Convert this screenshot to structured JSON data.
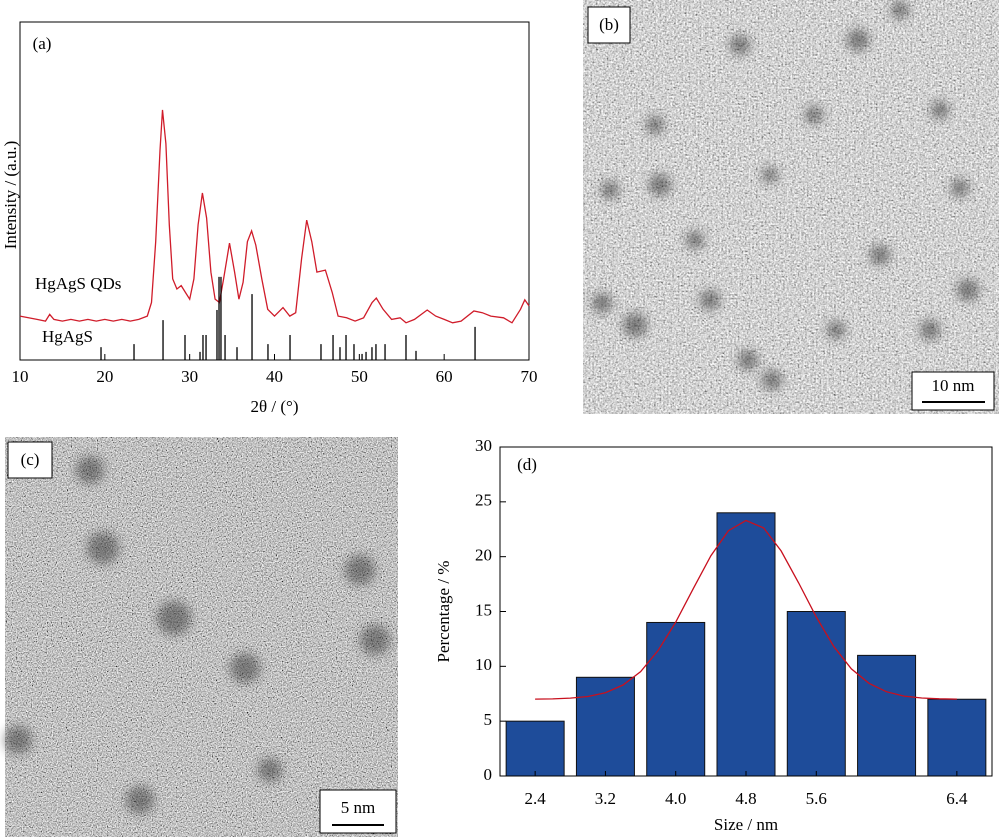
{
  "chart_data": [
    {
      "type": "line",
      "annotation": "(a)",
      "xlabel": "2θ / (°)",
      "ylabel": "Intensity / (a.u.)",
      "xlim": [
        10,
        70
      ],
      "xticks": [
        10,
        20,
        30,
        40,
        50,
        60,
        70
      ],
      "ylim": [
        0,
        100
      ],
      "series": [
        {
          "name": "HgAgS QDs",
          "color": "#d01c2a",
          "x": [
            10,
            11,
            12,
            13,
            13.5,
            14,
            15,
            16,
            17,
            18,
            19,
            20,
            21,
            22,
            23,
            24,
            25,
            25.5,
            26,
            26.5,
            26.8,
            27.2,
            27.6,
            28,
            28.5,
            29,
            29.5,
            30,
            30.5,
            31,
            31.5,
            32,
            32.5,
            33,
            33.5,
            34,
            34.7,
            35.3,
            35.8,
            36.3,
            36.8,
            37.3,
            37.8,
            38.5,
            39.2,
            40,
            41,
            41.8,
            42.5,
            43.2,
            43.8,
            44.4,
            45,
            46,
            46.8,
            47.5,
            48.5,
            49.5,
            50.5,
            51.5,
            52,
            52.8,
            53.8,
            54.8,
            55.5,
            56.5,
            58,
            59,
            60,
            61,
            62,
            63.5,
            64.5,
            65.5,
            67,
            68,
            69,
            69.5,
            70
          ],
          "values": [
            13,
            12.5,
            12,
            11.5,
            13.5,
            12,
            11.5,
            12,
            11.5,
            12,
            11.5,
            12,
            11.5,
            12,
            11.5,
            12,
            13,
            17,
            35,
            62,
            74,
            64,
            40,
            24,
            21,
            22,
            20,
            18,
            24,
            40,
            49.4,
            42,
            26,
            18,
            17,
            24,
            34.6,
            26,
            18,
            23,
            35,
            38.2,
            34,
            24,
            15,
            13,
            15.5,
            13,
            14,
            30,
            41.4,
            35,
            26,
            26.6,
            20,
            13,
            12.5,
            11.5,
            12.5,
            17,
            18.3,
            15,
            12,
            12.5,
            11,
            12,
            14.8,
            13,
            12,
            11,
            11.5,
            14.5,
            14,
            13,
            12.5,
            11,
            15,
            17.8,
            16
          ]
        },
        {
          "name": "HgAgS",
          "type": "stick",
          "color": "#000000",
          "x": [
            19.55,
            23.44,
            26.86,
            29.45,
            31.22,
            31.57,
            31.93,
            33.22,
            33.46,
            33.69,
            34.17,
            35.58,
            37.35,
            39.23,
            41.83,
            45.48,
            46.9,
            47.72,
            48.43,
            49.37,
            50.32,
            50.79,
            51.49,
            51.96,
            53.03,
            55.5,
            56.68,
            63.64
          ],
          "values": [
            3.8,
            4.7,
            11.8,
            7.4,
            2.4,
            7.4,
            7.4,
            14.8,
            24.6,
            24.6,
            7.4,
            3.8,
            19.5,
            4.7,
            7.4,
            4.7,
            7.4,
            3.8,
            7.4,
            4.7,
            1.8,
            2.4,
            3.8,
            4.7,
            4.7,
            7.4,
            2.7,
            9.8
          ]
        }
      ]
    },
    {
      "type": "bar",
      "annotation": "(d)",
      "xlabel": "Size / nm",
      "ylabel": "Percentage / %",
      "categories": [
        "2.4",
        "3.2",
        "4.0",
        "4.8",
        "5.6",
        null,
        "6.4"
      ],
      "values": [
        5,
        9,
        14,
        24,
        15,
        11,
        7
      ],
      "color": "#1e4c9a",
      "ylim": [
        0,
        30
      ],
      "yticks": [
        0,
        5,
        10,
        15,
        20,
        25,
        30
      ],
      "fit": {
        "color": "#c8101e",
        "x": [
          0,
          0.25,
          0.5,
          0.75,
          1,
          1.25,
          1.5,
          1.75,
          2,
          2.25,
          2.5,
          2.75,
          3,
          3.25,
          3.5,
          3.75,
          4,
          4.25,
          4.5,
          4.75,
          5,
          5.25,
          5.5,
          5.75,
          6
        ],
        "values": [
          7.01,
          7.03,
          7.1,
          7.25,
          7.6,
          8.3,
          9.51,
          11.44,
          14.02,
          17.09,
          20.09,
          22.37,
          23.3,
          22.62,
          20.53,
          17.6,
          14.5,
          11.79,
          9.77,
          8.45,
          7.68,
          7.29,
          7.11,
          7.04,
          7.01
        ]
      }
    }
  ],
  "images": [
    {
      "label": "(b)",
      "scale_bar": "10 nm"
    },
    {
      "label": "(c)",
      "scale_bar": "5 nm"
    }
  ]
}
